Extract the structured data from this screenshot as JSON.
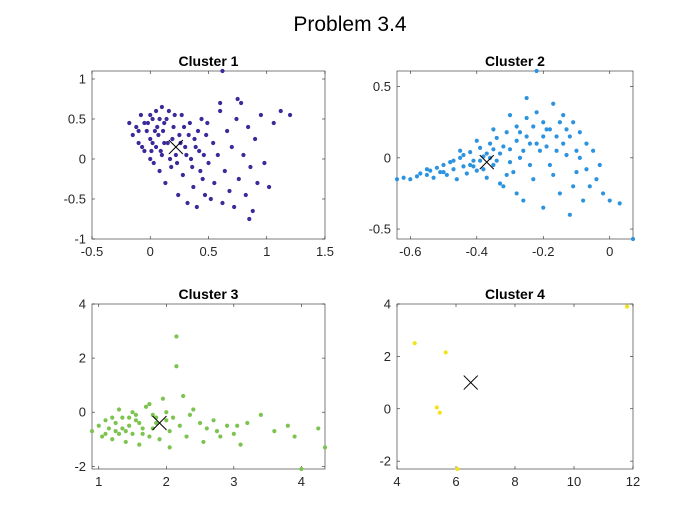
{
  "figure_title": "Problem 3.4",
  "chart_data": [
    {
      "type": "scatter",
      "title": "Cluster 1",
      "color": "#3a2a9a",
      "xlim": [
        -0.5,
        1.5
      ],
      "ylim": [
        -1,
        1.1
      ],
      "xticks": [
        -0.5,
        0,
        0.5,
        1,
        1.5
      ],
      "xticklabels": [
        "-0.5",
        "0",
        "0.5",
        "1",
        "1.5"
      ],
      "yticks": [
        -1,
        -0.5,
        0,
        0.5,
        1
      ],
      "yticklabels": [
        "-1",
        "-0.5",
        "0",
        "0.5",
        "1"
      ],
      "centroid": [
        0.22,
        0.15
      ],
      "points": [
        [
          0.62,
          1.1
        ],
        [
          -0.18,
          0.45
        ],
        [
          -0.15,
          0.3
        ],
        [
          -0.12,
          0.4
        ],
        [
          -0.1,
          0.2
        ],
        [
          -0.08,
          0.55
        ],
        [
          -0.05,
          0.1
        ],
        [
          -0.03,
          0.35
        ],
        [
          0.0,
          0.0
        ],
        [
          0.0,
          0.25
        ],
        [
          0.02,
          0.5
        ],
        [
          0.03,
          -0.05
        ],
        [
          0.05,
          0.15
        ],
        [
          0.05,
          0.6
        ],
        [
          0.07,
          0.3
        ],
        [
          0.08,
          -0.15
        ],
        [
          0.1,
          0.65
        ],
        [
          0.1,
          0.05
        ],
        [
          0.12,
          0.45
        ],
        [
          0.13,
          -0.3
        ],
        [
          0.15,
          0.2
        ],
        [
          0.16,
          0.6
        ],
        [
          0.18,
          -0.1
        ],
        [
          0.2,
          0.4
        ],
        [
          0.22,
          0.05
        ],
        [
          0.24,
          -0.45
        ],
        [
          0.25,
          0.3
        ],
        [
          0.27,
          0.55
        ],
        [
          0.28,
          -0.2
        ],
        [
          0.3,
          0.15
        ],
        [
          0.32,
          -0.55
        ],
        [
          0.34,
          0.45
        ],
        [
          0.35,
          0.0
        ],
        [
          0.37,
          -0.35
        ],
        [
          0.38,
          0.25
        ],
        [
          0.4,
          -0.6
        ],
        [
          0.42,
          0.1
        ],
        [
          0.44,
          0.5
        ],
        [
          0.45,
          -0.25
        ],
        [
          0.47,
          -0.45
        ],
        [
          0.48,
          0.3
        ],
        [
          0.5,
          -0.05
        ],
        [
          0.52,
          -0.5
        ],
        [
          0.54,
          0.2
        ],
        [
          0.55,
          -0.3
        ],
        [
          0.58,
          0.05
        ],
        [
          0.6,
          0.6
        ],
        [
          0.62,
          -0.55
        ],
        [
          0.64,
          -0.15
        ],
        [
          0.66,
          0.35
        ],
        [
          0.68,
          -0.4
        ],
        [
          0.7,
          0.15
        ],
        [
          0.72,
          -0.6
        ],
        [
          0.74,
          0.5
        ],
        [
          0.76,
          -0.25
        ],
        [
          0.78,
          0.7
        ],
        [
          0.8,
          0.05
        ],
        [
          0.82,
          -0.45
        ],
        [
          0.84,
          0.4
        ],
        [
          0.86,
          -0.1
        ],
        [
          0.88,
          -0.65
        ],
        [
          0.9,
          0.25
        ],
        [
          0.92,
          -0.3
        ],
        [
          0.95,
          0.55
        ],
        [
          0.98,
          -0.05
        ],
        [
          1.02,
          -0.35
        ],
        [
          1.06,
          0.45
        ],
        [
          1.12,
          0.6
        ],
        [
          1.2,
          0.55
        ],
        [
          0.85,
          -0.75
        ],
        [
          0.75,
          0.75
        ],
        [
          0.6,
          0.7
        ],
        [
          -0.05,
          0.45
        ],
        [
          0.02,
          0.2
        ],
        [
          0.06,
          0.4
        ],
        [
          0.09,
          0.1
        ],
        [
          0.11,
          0.35
        ],
        [
          0.14,
          0.5
        ],
        [
          0.17,
          0.0
        ],
        [
          0.19,
          0.25
        ],
        [
          0.21,
          0.55
        ],
        [
          0.23,
          -0.05
        ],
        [
          0.26,
          0.2
        ],
        [
          0.29,
          0.4
        ],
        [
          0.31,
          0.05
        ],
        [
          0.33,
          0.3
        ],
        [
          0.36,
          -0.1
        ],
        [
          0.39,
          0.15
        ],
        [
          0.41,
          0.35
        ],
        [
          0.43,
          -0.15
        ],
        [
          0.46,
          0.05
        ],
        [
          0.49,
          0.45
        ],
        [
          -0.1,
          0.35
        ],
        [
          -0.07,
          0.15
        ],
        [
          -0.02,
          0.45
        ],
        [
          0.01,
          0.1
        ],
        [
          0.04,
          0.35
        ],
        [
          0.0,
          0.55
        ],
        [
          0.08,
          0.5
        ],
        [
          0.12,
          0.2
        ]
      ]
    },
    {
      "type": "scatter",
      "title": "Cluster 2",
      "color": "#2b93e0",
      "xlim": [
        -0.64,
        0.07
      ],
      "ylim": [
        -0.57,
        0.61
      ],
      "xticks": [
        -0.6,
        -0.4,
        -0.2,
        0
      ],
      "xticklabels": [
        "-0.6",
        "-0.4",
        "-0.2",
        "0"
      ],
      "yticks": [
        -0.5,
        0,
        0.5
      ],
      "yticklabels": [
        "-0.5",
        "0",
        "0.5"
      ],
      "centroid": [
        -0.37,
        -0.03
      ],
      "points": [
        [
          -0.22,
          0.61
        ],
        [
          0.07,
          -0.57
        ],
        [
          -0.64,
          -0.15
        ],
        [
          -0.62,
          -0.14
        ],
        [
          -0.6,
          -0.15
        ],
        [
          -0.58,
          -0.13
        ],
        [
          -0.57,
          -0.11
        ],
        [
          -0.55,
          -0.12
        ],
        [
          -0.54,
          -0.09
        ],
        [
          -0.53,
          -0.14
        ],
        [
          -0.52,
          -0.07
        ],
        [
          -0.51,
          -0.1
        ],
        [
          -0.5,
          -0.05
        ],
        [
          -0.49,
          -0.12
        ],
        [
          -0.48,
          -0.03
        ],
        [
          -0.47,
          -0.08
        ],
        [
          -0.46,
          -0.15
        ],
        [
          -0.45,
          0.0
        ],
        [
          -0.44,
          -0.06
        ],
        [
          -0.43,
          -0.11
        ],
        [
          -0.42,
          0.04
        ],
        [
          -0.41,
          -0.02
        ],
        [
          -0.4,
          -0.09
        ],
        [
          -0.39,
          0.07
        ],
        [
          -0.38,
          0.01
        ],
        [
          -0.37,
          -0.14
        ],
        [
          -0.36,
          0.1
        ],
        [
          -0.35,
          -0.05
        ],
        [
          -0.34,
          0.14
        ],
        [
          -0.33,
          0.03
        ],
        [
          -0.32,
          -0.2
        ],
        [
          -0.31,
          0.18
        ],
        [
          -0.3,
          0.06
        ],
        [
          -0.29,
          -0.1
        ],
        [
          -0.28,
          0.22
        ],
        [
          -0.27,
          0.0
        ],
        [
          -0.26,
          -0.3
        ],
        [
          -0.25,
          0.28
        ],
        [
          -0.24,
          0.1
        ],
        [
          -0.23,
          -0.15
        ],
        [
          -0.22,
          0.32
        ],
        [
          -0.21,
          0.05
        ],
        [
          -0.2,
          -0.35
        ],
        [
          -0.19,
          0.2
        ],
        [
          -0.18,
          -0.05
        ],
        [
          -0.17,
          0.38
        ],
        [
          -0.16,
          0.15
        ],
        [
          -0.15,
          -0.25
        ],
        [
          -0.14,
          0.3
        ],
        [
          -0.13,
          0.02
        ],
        [
          -0.12,
          -0.4
        ],
        [
          -0.11,
          0.25
        ],
        [
          -0.1,
          -0.1
        ],
        [
          -0.09,
          0.18
        ],
        [
          -0.08,
          -0.3
        ],
        [
          -0.07,
          0.1
        ],
        [
          -0.06,
          -0.2
        ],
        [
          -0.05,
          0.05
        ],
        [
          -0.04,
          -0.15
        ],
        [
          -0.03,
          -0.05
        ],
        [
          -0.02,
          -0.25
        ],
        [
          0.0,
          -0.3
        ],
        [
          0.03,
          -0.32
        ],
        [
          -0.25,
          0.42
        ],
        [
          -0.3,
          0.3
        ],
        [
          -0.35,
          0.2
        ],
        [
          -0.28,
          -0.25
        ],
        [
          -0.33,
          -0.18
        ],
        [
          -0.4,
          0.12
        ],
        [
          -0.45,
          0.05
        ],
        [
          -0.42,
          -0.05
        ],
        [
          -0.38,
          -0.08
        ],
        [
          -0.36,
          0.0
        ],
        [
          -0.34,
          -0.02
        ],
        [
          -0.32,
          0.08
        ],
        [
          -0.3,
          -0.03
        ],
        [
          -0.28,
          0.12
        ],
        [
          -0.26,
          0.05
        ],
        [
          -0.24,
          -0.05
        ],
        [
          -0.22,
          0.1
        ],
        [
          -0.2,
          0.15
        ],
        [
          -0.18,
          0.2
        ],
        [
          -0.16,
          0.05
        ],
        [
          -0.14,
          0.1
        ],
        [
          -0.12,
          0.15
        ],
        [
          -0.1,
          0.05
        ],
        [
          -0.15,
          0.25
        ],
        [
          -0.2,
          0.25
        ],
        [
          -0.25,
          0.15
        ],
        [
          -0.55,
          -0.08
        ],
        [
          -0.5,
          -0.1
        ],
        [
          -0.47,
          -0.02
        ],
        [
          -0.44,
          0.02
        ],
        [
          -0.41,
          -0.06
        ],
        [
          -0.39,
          -0.02
        ],
        [
          -0.37,
          0.03
        ],
        [
          -0.35,
          0.06
        ],
        [
          -0.31,
          -0.12
        ],
        [
          -0.27,
          0.18
        ],
        [
          -0.23,
          0.22
        ],
        [
          -0.19,
          0.08
        ],
        [
          -0.17,
          -0.12
        ],
        [
          -0.13,
          0.2
        ],
        [
          -0.11,
          -0.2
        ],
        [
          -0.09,
          0.0
        ],
        [
          -0.07,
          -0.08
        ]
      ]
    },
    {
      "type": "scatter",
      "title": "Cluster 3",
      "color": "#7cc34f",
      "xlim": [
        0.9,
        4.35
      ],
      "ylim": [
        -2.1,
        4
      ],
      "xticks": [
        1,
        2,
        3,
        4
      ],
      "xticklabels": [
        "1",
        "2",
        "3",
        "4"
      ],
      "yticks": [
        -2,
        0,
        2,
        4
      ],
      "yticklabels": [
        "-2",
        "0",
        "2",
        "4"
      ],
      "centroid": [
        1.9,
        -0.4
      ],
      "points": [
        [
          0.9,
          -0.7
        ],
        [
          1.0,
          -0.5
        ],
        [
          1.05,
          -0.9
        ],
        [
          1.1,
          -0.3
        ],
        [
          1.15,
          -0.6
        ],
        [
          1.2,
          -1.0
        ],
        [
          1.25,
          -0.4
        ],
        [
          1.3,
          -0.8
        ],
        [
          1.3,
          0.1
        ],
        [
          1.35,
          -0.2
        ],
        [
          1.4,
          -1.1
        ],
        [
          1.45,
          -0.5
        ],
        [
          1.5,
          -0.8
        ],
        [
          1.5,
          0.0
        ],
        [
          1.55,
          -0.3
        ],
        [
          1.6,
          -1.2
        ],
        [
          1.65,
          -0.6
        ],
        [
          1.7,
          0.2
        ],
        [
          1.75,
          -0.9
        ],
        [
          1.8,
          -0.1
        ],
        [
          1.85,
          -0.4
        ],
        [
          1.9,
          -1.0
        ],
        [
          2.0,
          0.0
        ],
        [
          2.05,
          -0.7
        ],
        [
          2.1,
          -0.2
        ],
        [
          2.15,
          1.7
        ],
        [
          2.15,
          2.8
        ],
        [
          2.2,
          -0.5
        ],
        [
          2.3,
          -0.9
        ],
        [
          2.4,
          0.1
        ],
        [
          2.5,
          -0.4
        ],
        [
          2.55,
          -1.1
        ],
        [
          2.6,
          -0.6
        ],
        [
          2.7,
          -0.3
        ],
        [
          2.8,
          -0.9
        ],
        [
          2.9,
          -0.5
        ],
        [
          3.0,
          -0.8
        ],
        [
          3.1,
          -1.2
        ],
        [
          3.2,
          -0.4
        ],
        [
          3.4,
          -0.1
        ],
        [
          3.6,
          -0.7
        ],
        [
          3.8,
          -0.5
        ],
        [
          3.9,
          -0.9
        ],
        [
          4.0,
          -2.1
        ],
        [
          4.25,
          -0.6
        ],
        [
          4.35,
          -1.3
        ],
        [
          1.2,
          -0.2
        ],
        [
          1.4,
          -0.7
        ],
        [
          1.6,
          -0.4
        ],
        [
          1.8,
          -0.6
        ],
        [
          2.0,
          -0.3
        ],
        [
          1.1,
          -0.8
        ],
        [
          1.35,
          -0.6
        ],
        [
          1.55,
          -0.1
        ],
        [
          1.75,
          0.3
        ],
        [
          1.95,
          0.5
        ],
        [
          2.25,
          0.6
        ],
        [
          1.25,
          -0.7
        ],
        [
          1.45,
          -0.2
        ],
        [
          1.65,
          -0.8
        ],
        [
          1.85,
          -0.2
        ],
        [
          2.05,
          -1.3
        ],
        [
          2.35,
          -0.1
        ],
        [
          2.75,
          -0.7
        ],
        [
          3.05,
          -0.5
        ]
      ]
    },
    {
      "type": "scatter",
      "title": "Cluster 4",
      "color": "#f2e31a",
      "xlim": [
        4,
        12
      ],
      "ylim": [
        -2.3,
        4
      ],
      "xticks": [
        4,
        6,
        8,
        10,
        12
      ],
      "xticklabels": [
        "4",
        "6",
        "8",
        "10",
        "12"
      ],
      "yticks": [
        -2,
        0,
        2,
        4
      ],
      "yticklabels": [
        "-2",
        "0",
        "2",
        "4"
      ],
      "centroid": [
        6.5,
        1.0
      ],
      "points": [
        [
          4.6,
          2.5
        ],
        [
          5.65,
          2.15
        ],
        [
          5.35,
          0.05
        ],
        [
          5.45,
          -0.15
        ],
        [
          6.05,
          -2.3
        ],
        [
          11.8,
          3.9
        ]
      ]
    }
  ]
}
